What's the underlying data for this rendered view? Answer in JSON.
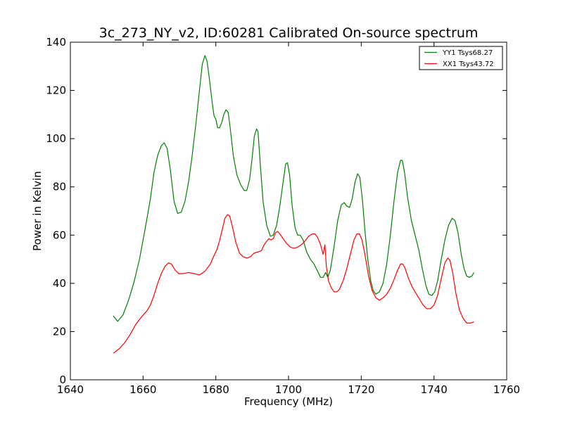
{
  "chart_data": {
    "type": "line",
    "title": "3c_273_NY_v2, ID:60281 Calibrated On-source spectrum",
    "xlabel": "Frequency (MHz)",
    "ylabel": "Power in Kelvin",
    "xlim": [
      1640,
      1760
    ],
    "ylim": [
      0,
      140
    ],
    "xticks": [
      1640,
      1660,
      1680,
      1700,
      1720,
      1740,
      1760
    ],
    "yticks": [
      0,
      20,
      40,
      60,
      80,
      100,
      120,
      140
    ],
    "grid": false,
    "legend_position": "top-right",
    "series": [
      {
        "name": "YY1 Tsys68.27",
        "color": "#008000",
        "points": [
          [
            1651.8,
            26.5
          ],
          [
            1653.0,
            24.2
          ],
          [
            1654.5,
            27.0
          ],
          [
            1656.0,
            33.0
          ],
          [
            1657.5,
            40.5
          ],
          [
            1659.0,
            50.0
          ],
          [
            1660.5,
            62.0
          ],
          [
            1662.0,
            75.0
          ],
          [
            1663.0,
            86.0
          ],
          [
            1664.0,
            93.0
          ],
          [
            1665.0,
            97.0
          ],
          [
            1665.8,
            98.3
          ],
          [
            1666.6,
            96.0
          ],
          [
            1667.5,
            87.0
          ],
          [
            1668.5,
            74.0
          ],
          [
            1669.5,
            69.0
          ],
          [
            1670.5,
            69.5
          ],
          [
            1671.5,
            74.0
          ],
          [
            1672.5,
            82.0
          ],
          [
            1673.5,
            93.0
          ],
          [
            1674.5,
            106.0
          ],
          [
            1675.5,
            120.0
          ],
          [
            1676.3,
            131.0
          ],
          [
            1677.0,
            134.5
          ],
          [
            1677.6,
            132.0
          ],
          [
            1678.3,
            124.0
          ],
          [
            1679.0,
            115.0
          ],
          [
            1679.5,
            109.5
          ],
          [
            1680.0,
            108.0
          ],
          [
            1680.5,
            104.5
          ],
          [
            1681.0,
            104.5
          ],
          [
            1681.6,
            106.5
          ],
          [
            1682.2,
            110.0
          ],
          [
            1682.8,
            112.0
          ],
          [
            1683.4,
            111.0
          ],
          [
            1684.0,
            104.0
          ],
          [
            1684.8,
            93.0
          ],
          [
            1685.8,
            85.0
          ],
          [
            1686.8,
            81.0
          ],
          [
            1687.8,
            78.5
          ],
          [
            1688.5,
            78.5
          ],
          [
            1689.3,
            83.0
          ],
          [
            1690.0,
            92.0
          ],
          [
            1690.6,
            101.0
          ],
          [
            1691.2,
            104.0
          ],
          [
            1691.6,
            103.0
          ],
          [
            1692.2,
            90.0
          ],
          [
            1693.0,
            74.0
          ],
          [
            1694.0,
            64.0
          ],
          [
            1695.0,
            59.5
          ],
          [
            1695.8,
            60.0
          ],
          [
            1696.7,
            64.0
          ],
          [
            1697.6,
            72.0
          ],
          [
            1698.5,
            82.0
          ],
          [
            1699.2,
            89.5
          ],
          [
            1699.7,
            90.0
          ],
          [
            1700.3,
            85.0
          ],
          [
            1701.0,
            72.0
          ],
          [
            1701.8,
            63.0
          ],
          [
            1702.5,
            60.0
          ],
          [
            1703.2,
            60.0
          ],
          [
            1704.0,
            58.0
          ],
          [
            1705.0,
            53.0
          ],
          [
            1706.0,
            50.0
          ],
          [
            1707.0,
            48.0
          ],
          [
            1708.0,
            45.0
          ],
          [
            1708.8,
            42.5
          ],
          [
            1709.5,
            42.5
          ],
          [
            1710.2,
            44.5
          ],
          [
            1710.8,
            42.5
          ],
          [
            1711.5,
            45.5
          ],
          [
            1712.5,
            55.0
          ],
          [
            1713.5,
            66.0
          ],
          [
            1714.5,
            72.5
          ],
          [
            1715.3,
            73.5
          ],
          [
            1716.0,
            72.0
          ],
          [
            1716.8,
            71.5
          ],
          [
            1717.5,
            75.0
          ],
          [
            1718.3,
            82.0
          ],
          [
            1719.0,
            85.5
          ],
          [
            1719.6,
            84.0
          ],
          [
            1720.3,
            75.0
          ],
          [
            1721.0,
            62.0
          ],
          [
            1721.8,
            50.0
          ],
          [
            1722.6,
            41.0
          ],
          [
            1723.3,
            37.0
          ],
          [
            1724.0,
            35.5
          ],
          [
            1725.0,
            36.5
          ],
          [
            1726.0,
            40.0
          ],
          [
            1727.0,
            48.0
          ],
          [
            1728.0,
            60.0
          ],
          [
            1729.0,
            74.0
          ],
          [
            1730.0,
            86.0
          ],
          [
            1730.8,
            91.0
          ],
          [
            1731.3,
            91.0
          ],
          [
            1731.9,
            86.0
          ],
          [
            1732.8,
            75.0
          ],
          [
            1733.8,
            66.0
          ],
          [
            1734.8,
            60.0
          ],
          [
            1735.8,
            54.0
          ],
          [
            1736.8,
            46.0
          ],
          [
            1737.8,
            39.0
          ],
          [
            1738.6,
            35.5
          ],
          [
            1739.4,
            35.0
          ],
          [
            1740.2,
            36.5
          ],
          [
            1741.0,
            41.0
          ],
          [
            1742.0,
            50.0
          ],
          [
            1743.0,
            58.0
          ],
          [
            1744.0,
            64.0
          ],
          [
            1745.0,
            67.0
          ],
          [
            1745.8,
            66.0
          ],
          [
            1746.6,
            61.0
          ],
          [
            1747.5,
            52.0
          ],
          [
            1748.3,
            46.0
          ],
          [
            1749.0,
            43.0
          ],
          [
            1749.7,
            42.5
          ],
          [
            1750.4,
            43.0
          ],
          [
            1751.0,
            44.5
          ]
        ]
      },
      {
        "name": "XX1 Tsys43.72",
        "color": "#ff0000",
        "points": [
          [
            1651.8,
            11.0
          ],
          [
            1653.5,
            13.0
          ],
          [
            1655.0,
            15.5
          ],
          [
            1656.5,
            19.0
          ],
          [
            1658.0,
            23.0
          ],
          [
            1659.5,
            26.0
          ],
          [
            1661.0,
            28.5
          ],
          [
            1662.0,
            31.0
          ],
          [
            1663.0,
            35.0
          ],
          [
            1664.0,
            40.0
          ],
          [
            1665.0,
            44.0
          ],
          [
            1666.0,
            47.0
          ],
          [
            1667.0,
            48.5
          ],
          [
            1667.8,
            48.0
          ],
          [
            1668.8,
            45.5
          ],
          [
            1669.8,
            44.0
          ],
          [
            1671.0,
            44.0
          ],
          [
            1672.5,
            44.5
          ],
          [
            1674.0,
            44.0
          ],
          [
            1675.5,
            43.5
          ],
          [
            1677.0,
            45.0
          ],
          [
            1678.5,
            48.0
          ],
          [
            1679.5,
            51.5
          ],
          [
            1680.3,
            54.0
          ],
          [
            1681.0,
            57.5
          ],
          [
            1681.8,
            62.5
          ],
          [
            1682.5,
            67.0
          ],
          [
            1683.2,
            68.5
          ],
          [
            1683.8,
            68.0
          ],
          [
            1684.5,
            64.0
          ],
          [
            1685.5,
            57.0
          ],
          [
            1686.5,
            52.5
          ],
          [
            1687.5,
            51.0
          ],
          [
            1688.5,
            50.5
          ],
          [
            1689.5,
            51.0
          ],
          [
            1690.5,
            52.5
          ],
          [
            1691.5,
            53.0
          ],
          [
            1692.5,
            53.5
          ],
          [
            1693.3,
            56.0
          ],
          [
            1694.0,
            57.5
          ],
          [
            1694.6,
            58.5
          ],
          [
            1695.2,
            58.0
          ],
          [
            1695.8,
            58.5
          ],
          [
            1696.4,
            61.0
          ],
          [
            1697.0,
            61.5
          ],
          [
            1697.6,
            60.5
          ],
          [
            1698.5,
            58.5
          ],
          [
            1699.5,
            56.5
          ],
          [
            1700.5,
            55.0
          ],
          [
            1701.5,
            54.5
          ],
          [
            1702.5,
            55.0
          ],
          [
            1703.5,
            56.0
          ],
          [
            1704.5,
            57.5
          ],
          [
            1705.5,
            59.5
          ],
          [
            1706.5,
            60.5
          ],
          [
            1707.3,
            60.5
          ],
          [
            1708.0,
            59.0
          ],
          [
            1708.8,
            56.0
          ],
          [
            1709.5,
            52.0
          ],
          [
            1710.0,
            56.0
          ],
          [
            1710.4,
            47.0
          ],
          [
            1711.0,
            41.0
          ],
          [
            1711.8,
            38.0
          ],
          [
            1712.5,
            36.5
          ],
          [
            1713.3,
            36.5
          ],
          [
            1714.0,
            37.5
          ],
          [
            1715.0,
            41.0
          ],
          [
            1716.0,
            46.0
          ],
          [
            1717.0,
            52.0
          ],
          [
            1718.0,
            58.0
          ],
          [
            1718.8,
            60.5
          ],
          [
            1719.5,
            60.5
          ],
          [
            1720.2,
            58.0
          ],
          [
            1721.0,
            52.0
          ],
          [
            1722.0,
            43.0
          ],
          [
            1723.0,
            37.0
          ],
          [
            1724.0,
            34.0
          ],
          [
            1725.0,
            33.0
          ],
          [
            1726.0,
            34.0
          ],
          [
            1727.0,
            35.5
          ],
          [
            1728.0,
            38.0
          ],
          [
            1729.0,
            41.5
          ],
          [
            1730.0,
            45.5
          ],
          [
            1730.8,
            48.0
          ],
          [
            1731.4,
            48.0
          ],
          [
            1732.0,
            46.5
          ],
          [
            1733.0,
            42.0
          ],
          [
            1734.0,
            38.5
          ],
          [
            1735.0,
            36.0
          ],
          [
            1736.0,
            33.5
          ],
          [
            1737.0,
            31.0
          ],
          [
            1738.0,
            29.5
          ],
          [
            1739.0,
            29.5
          ],
          [
            1740.0,
            31.0
          ],
          [
            1741.0,
            35.0
          ],
          [
            1742.0,
            42.0
          ],
          [
            1743.0,
            48.5
          ],
          [
            1743.8,
            50.5
          ],
          [
            1744.4,
            49.5
          ],
          [
            1745.2,
            44.0
          ],
          [
            1746.0,
            36.0
          ],
          [
            1747.0,
            29.0
          ],
          [
            1748.0,
            25.5
          ],
          [
            1749.0,
            23.5
          ],
          [
            1750.0,
            23.5
          ],
          [
            1751.0,
            24.0
          ]
        ]
      }
    ]
  }
}
